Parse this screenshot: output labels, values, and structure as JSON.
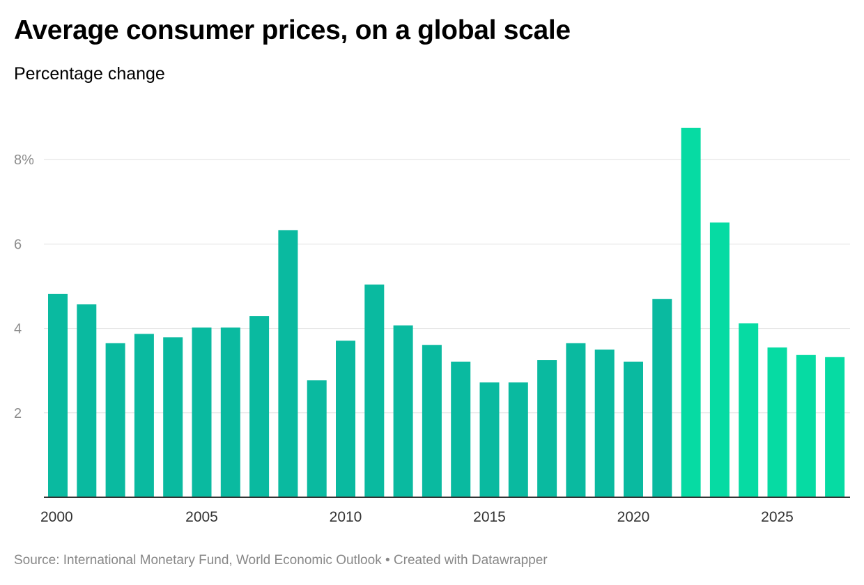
{
  "title": "Average consumer prices, on a global scale",
  "subtitle": "Percentage change",
  "footer": {
    "source_label": "Source:",
    "source": "International Monetary Fund, World Economic Outlook",
    "separator": "•",
    "created_with": "Created with Datawrapper"
  },
  "colors": {
    "historical": "#0ABAA0",
    "forecast": "#06DBA3",
    "grid": "#E0E0E0",
    "axis": "#333333",
    "tick_label": "#8C8C8C",
    "x_tick_label": "#333333"
  },
  "chart_data": {
    "type": "bar",
    "title": "Average consumer prices, on a global scale",
    "subtitle": "Percentage change",
    "xlabel": "",
    "ylabel": "",
    "ylim": [
      0,
      9
    ],
    "y_ticks": [
      2,
      4,
      6,
      8
    ],
    "y_tick_labels": [
      "2",
      "4",
      "6",
      "8%"
    ],
    "x_ticks": [
      2000,
      2005,
      2010,
      2015,
      2020,
      2025
    ],
    "x_tick_labels": [
      "2000",
      "2005",
      "2010",
      "2015",
      "2020",
      "2025"
    ],
    "grid": true,
    "legend": "none",
    "categories": [
      2000,
      2001,
      2002,
      2003,
      2004,
      2005,
      2006,
      2007,
      2008,
      2009,
      2010,
      2011,
      2012,
      2013,
      2014,
      2015,
      2016,
      2017,
      2018,
      2019,
      2020,
      2021,
      2022,
      2023,
      2024,
      2025,
      2026,
      2027
    ],
    "values": [
      4.82,
      4.57,
      3.65,
      3.87,
      3.79,
      4.02,
      4.02,
      4.29,
      6.33,
      2.77,
      3.71,
      5.04,
      4.07,
      3.61,
      3.21,
      2.72,
      2.72,
      3.25,
      3.65,
      3.5,
      3.21,
      4.7,
      8.75,
      6.51,
      4.12,
      3.55,
      3.37,
      3.32
    ],
    "forecast_from": 2022
  }
}
